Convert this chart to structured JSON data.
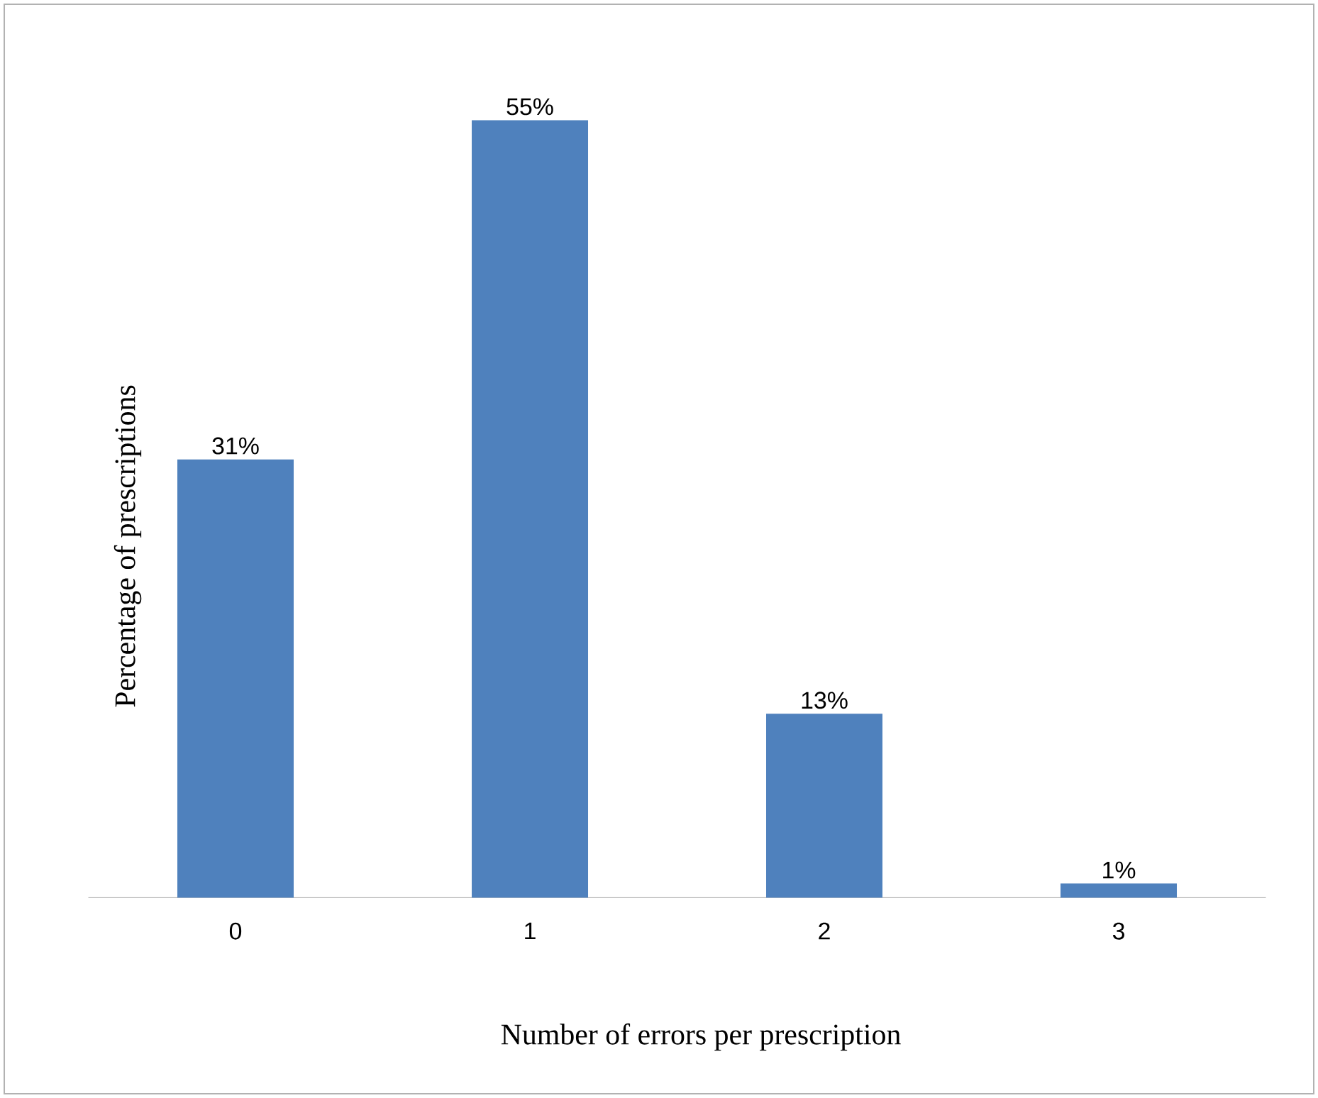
{
  "chart_data": {
    "type": "bar",
    "xlabel": "Number of errors per prescription",
    "ylabel": "Percentage of prescriptions",
    "categories": [
      "0",
      "1",
      "2",
      "3"
    ],
    "values": [
      31,
      55,
      13,
      1
    ],
    "value_labels": [
      "31%",
      "55%",
      "13%",
      "1%"
    ],
    "color": "#4f81bd"
  }
}
